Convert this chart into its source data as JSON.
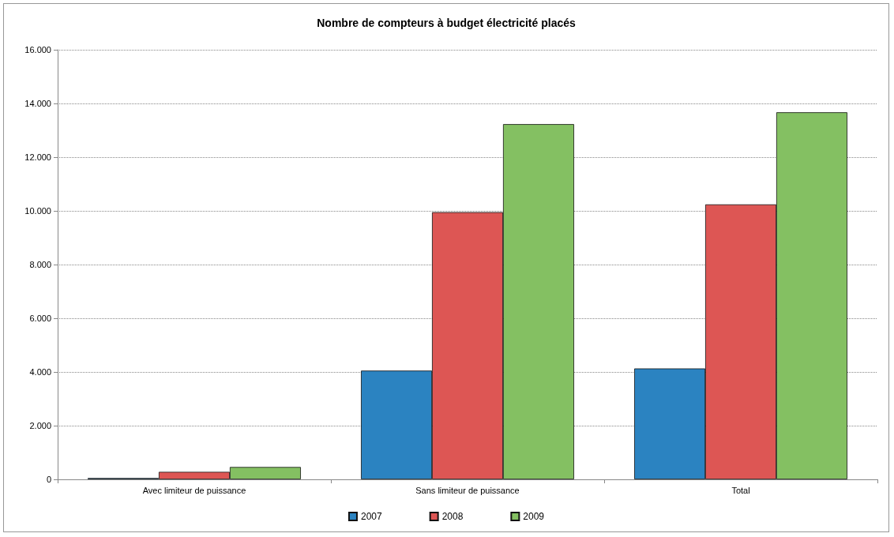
{
  "chart_data": {
    "type": "bar",
    "title": "Nombre de compteurs à budget électricité placés",
    "categories": [
      "Avec limiteur de puissance",
      "Sans limiteur de puissance",
      "Total"
    ],
    "series": [
      {
        "name": "2007",
        "color": "#2b83c1",
        "values": [
          50,
          4050,
          4130
        ]
      },
      {
        "name": "2008",
        "color": "#dd5654",
        "values": [
          280,
          9950,
          10240
        ]
      },
      {
        "name": "2009",
        "color": "#84c062",
        "values": [
          460,
          13230,
          13670
        ]
      }
    ],
    "ylim": [
      0,
      16000
    ],
    "yticks": [
      {
        "value": 0,
        "label": "0"
      },
      {
        "value": 2000,
        "label": "2.000"
      },
      {
        "value": 4000,
        "label": "4.000"
      },
      {
        "value": 6000,
        "label": "6.000"
      },
      {
        "value": 8000,
        "label": "8.000"
      },
      {
        "value": 10000,
        "label": "10.000"
      },
      {
        "value": 12000,
        "label": "12.000"
      },
      {
        "value": 14000,
        "label": "14.000"
      },
      {
        "value": 16000,
        "label": "16.000"
      }
    ],
    "grid": "y",
    "legend": "bottom"
  }
}
